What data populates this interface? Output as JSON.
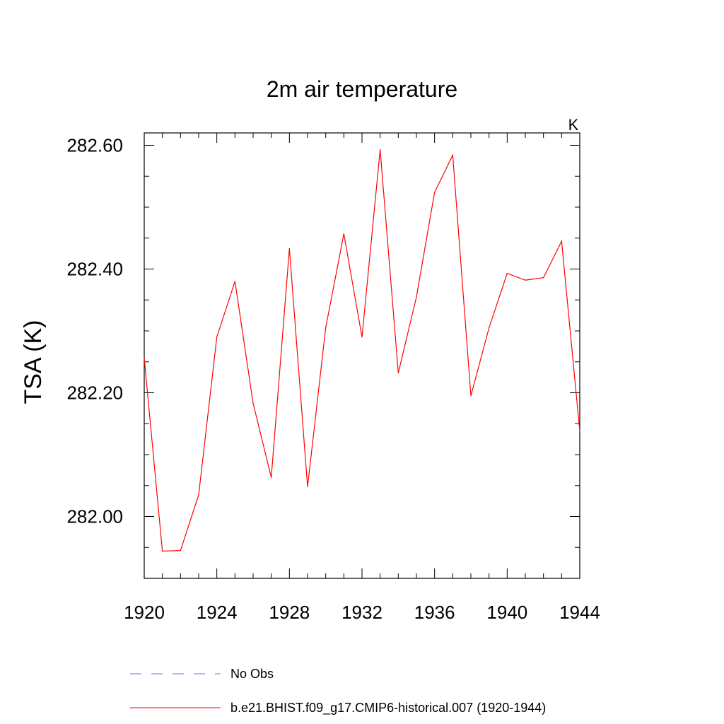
{
  "chart_data": {
    "type": "line",
    "title": "2m air temperature",
    "units_label": "K",
    "xlabel": "",
    "ylabel": "TSA  (K)",
    "xlim": [
      1920,
      1944
    ],
    "ylim": [
      281.9,
      282.62
    ],
    "x_ticks": [
      1920,
      1924,
      1928,
      1932,
      1936,
      1940,
      1944
    ],
    "x_tick_labels": [
      "1920",
      "1924",
      "1928",
      "1932",
      "1936",
      "1940",
      "1944"
    ],
    "y_ticks": [
      282.0,
      282.2,
      282.4,
      282.6
    ],
    "y_tick_labels": [
      "282.00",
      "282.20",
      "282.40",
      "282.60"
    ],
    "grid": false,
    "legend_position": "bottom",
    "series": [
      {
        "name": "b.e21.BHIST.f09_g17.CMIP6-historical.007 (1920-1944)",
        "color": "#ff0000",
        "style": "solid",
        "x": [
          1920,
          1921,
          1922,
          1923,
          1924,
          1925,
          1926,
          1927,
          1928,
          1929,
          1930,
          1931,
          1932,
          1933,
          1934,
          1935,
          1936,
          1937,
          1938,
          1939,
          1940,
          1941,
          1942,
          1943,
          1944
        ],
        "values": [
          282.256,
          281.944,
          281.945,
          282.035,
          282.29,
          282.38,
          282.183,
          282.063,
          282.433,
          282.048,
          282.305,
          282.457,
          282.29,
          282.593,
          282.232,
          282.355,
          282.524,
          282.584,
          282.195,
          282.305,
          282.393,
          282.382,
          282.386,
          282.445,
          282.138
        ]
      }
    ],
    "legend": [
      {
        "label": "No Obs",
        "color": "#7b68ee",
        "style": "dashed"
      },
      {
        "label": "b.e21.BHIST.f09_g17.CMIP6-historical.007 (1920-1944)",
        "color": "#ff0000",
        "style": "solid"
      }
    ]
  }
}
